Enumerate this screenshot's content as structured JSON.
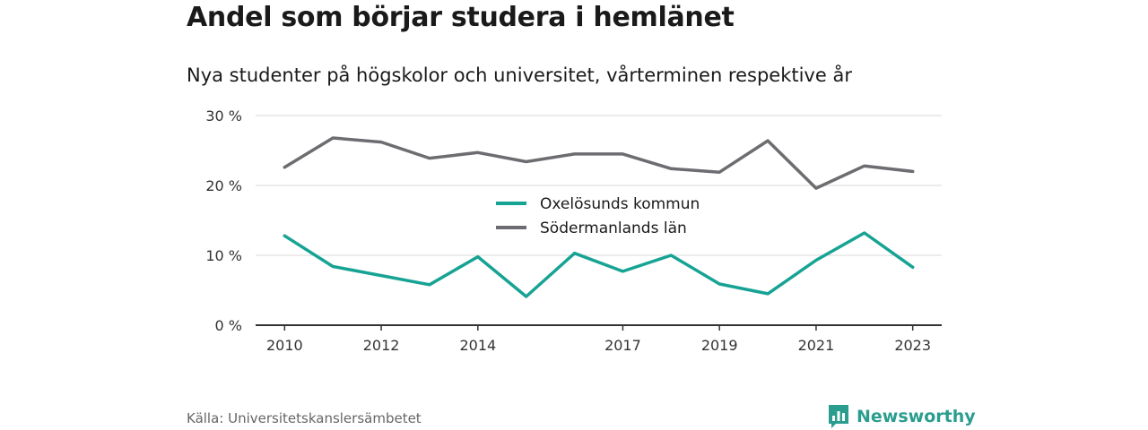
{
  "title": "Andel som börjar studera i hemlänet",
  "subtitle": "Nya studenter på högskolor och universitet, vårterminen respektive år",
  "source": "Källa: Universitetskanslersämbetet",
  "brand": {
    "name": "Newsworthy",
    "icon": "bar-chart-speech-bubble-icon",
    "color": "#2a9d8f"
  },
  "chart_data": {
    "type": "line",
    "x": [
      2010,
      2011,
      2012,
      2013,
      2014,
      2015,
      2016,
      2017,
      2018,
      2019,
      2020,
      2021,
      2022,
      2023
    ],
    "xticks": [
      2010,
      2012,
      2014,
      2017,
      2019,
      2021,
      2023
    ],
    "xtick_labels": [
      "2010",
      "2012",
      "2014",
      "2017",
      "2019",
      "2021",
      "2023"
    ],
    "yticks": [
      0,
      10,
      20,
      30
    ],
    "ytick_labels": [
      "0 %",
      "10 %",
      "20 %",
      "30 %"
    ],
    "ylim": [
      0,
      30
    ],
    "xlim": [
      2009.4,
      2023.6
    ],
    "grid": true,
    "legend_position": "center",
    "series": [
      {
        "name": "Oxelösunds kommun",
        "color": "#17a394",
        "values": [
          12.8,
          8.4,
          7.1,
          5.8,
          9.8,
          4.1,
          10.3,
          7.7,
          10.0,
          5.9,
          4.5,
          9.3,
          13.2,
          8.3
        ]
      },
      {
        "name": "Södermanlands län",
        "color": "#6d6c70",
        "values": [
          22.6,
          26.8,
          26.2,
          23.9,
          24.7,
          23.4,
          24.5,
          24.5,
          22.4,
          21.9,
          26.4,
          19.6,
          22.8,
          22.0
        ]
      }
    ]
  }
}
